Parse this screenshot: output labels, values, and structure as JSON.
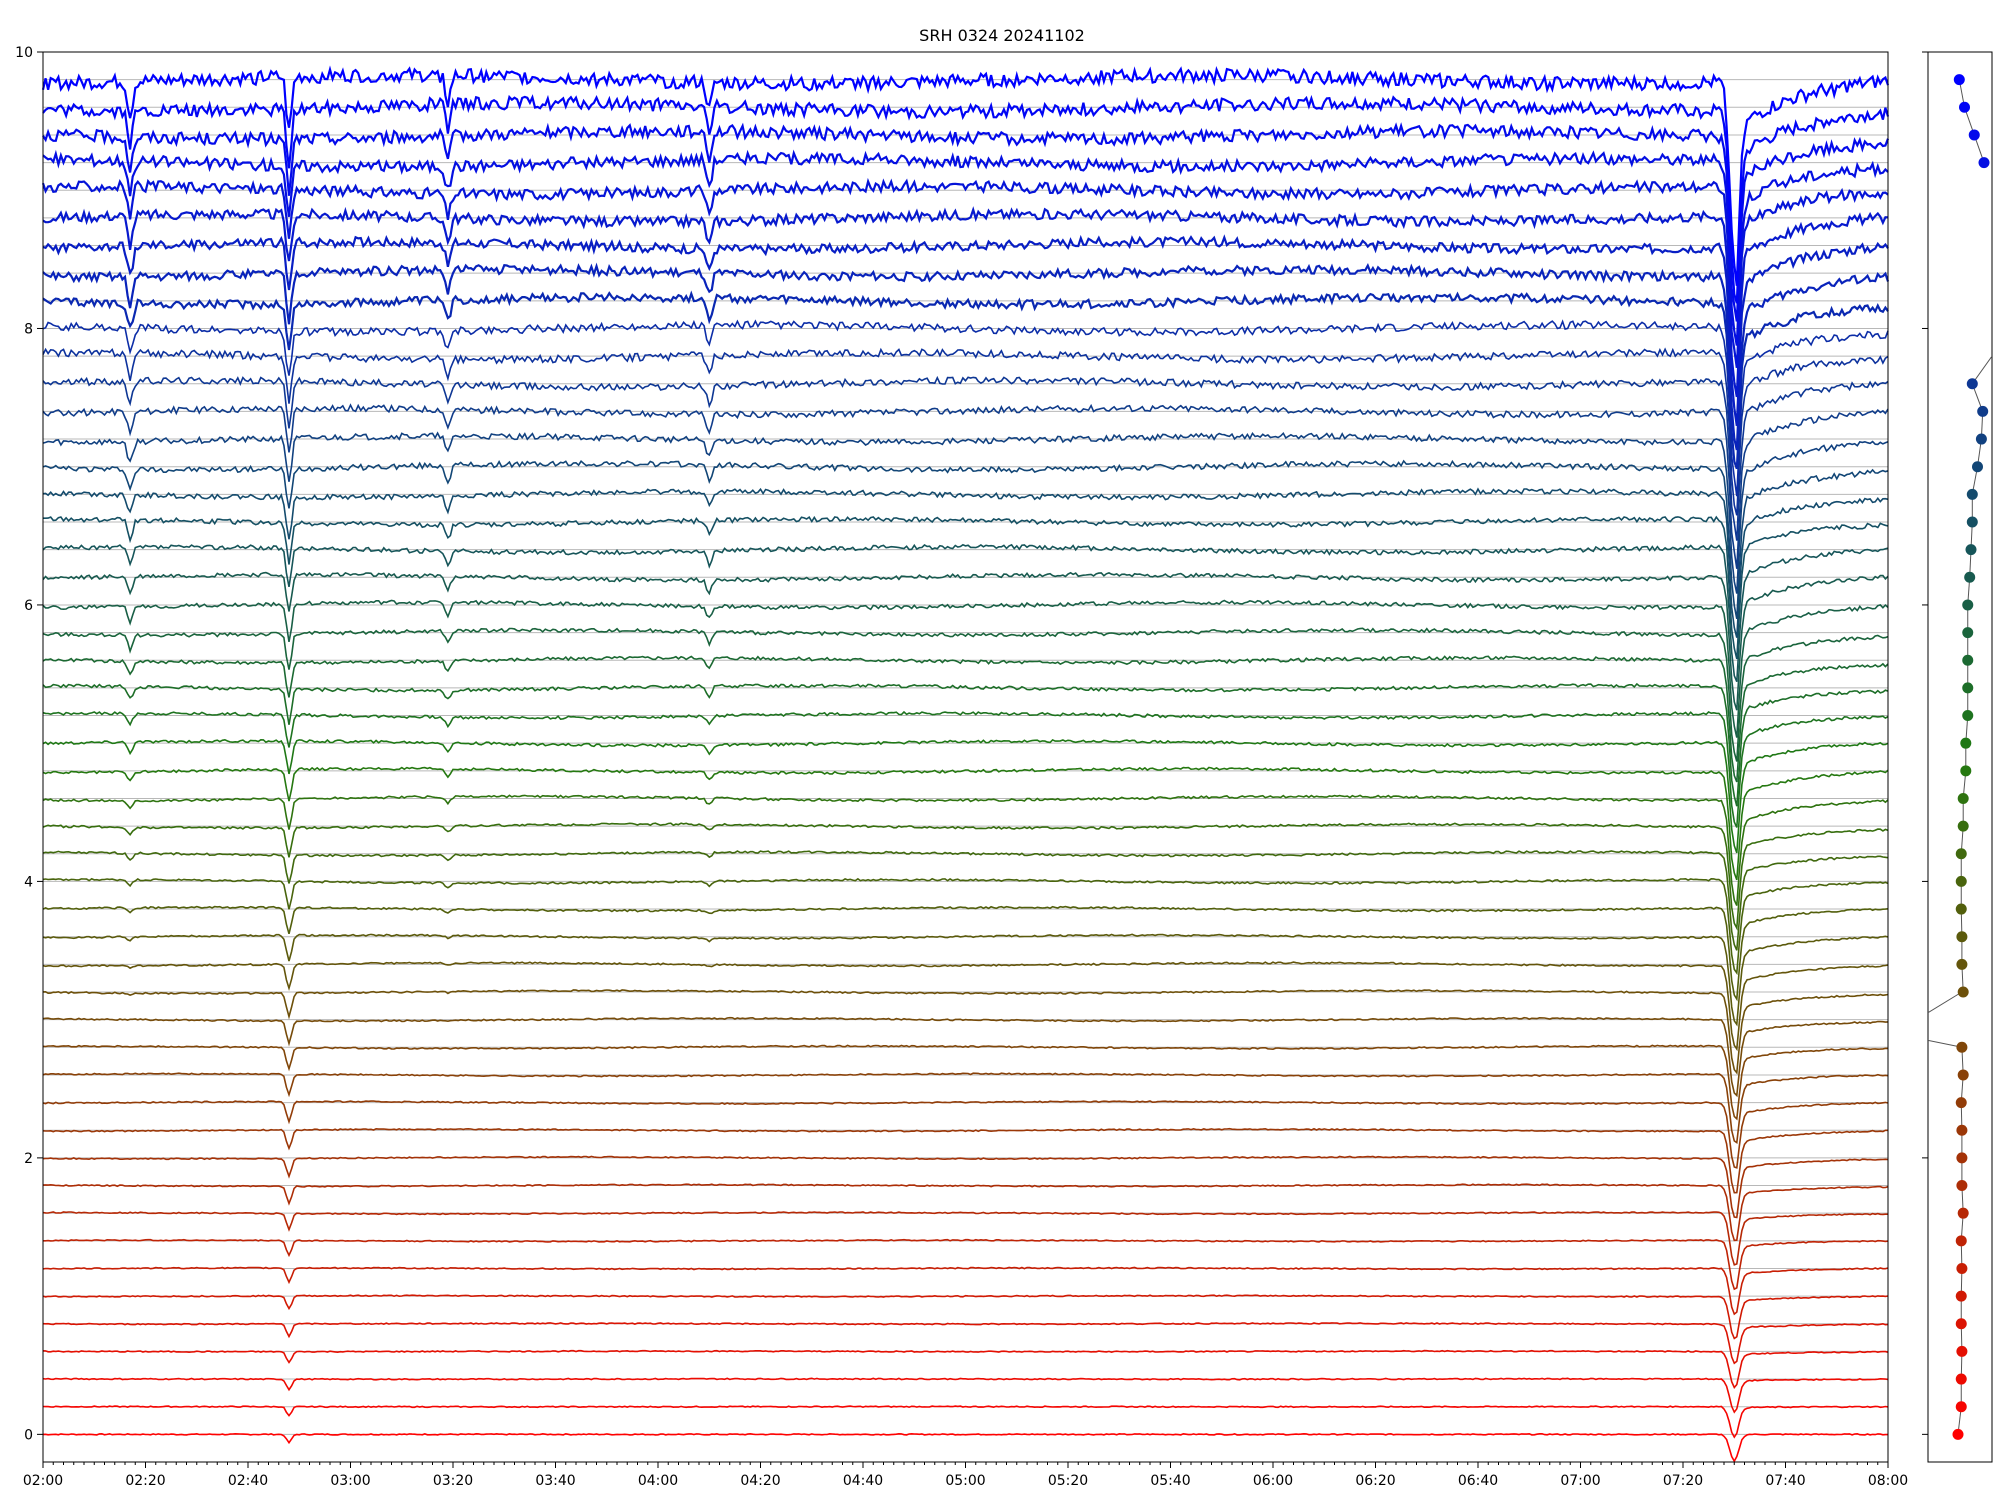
{
  "chart_data": [
    {
      "type": "line",
      "title": "SRH 0324 20241102",
      "xlabel": "",
      "ylabel": "",
      "x_range": [
        "02:00",
        "08:00"
      ],
      "ylim": [
        -0.2,
        10
      ],
      "x_ticks": [
        "02:00",
        "02:20",
        "02:40",
        "03:00",
        "03:20",
        "03:40",
        "04:00",
        "04:20",
        "04:40",
        "05:00",
        "05:20",
        "05:40",
        "06:00",
        "06:20",
        "06:40",
        "07:00",
        "07:20",
        "07:40",
        "08:00"
      ],
      "y_ticks": [
        "0",
        "2",
        "4",
        "6",
        "8",
        "10"
      ],
      "grid": "horizontal baseline per channel",
      "legend": "none",
      "num_series": 50,
      "channel_spacing": 0.2,
      "series_baselines": [
        0.0,
        0.2,
        0.4,
        0.6,
        0.8,
        1.0,
        1.2,
        1.4,
        1.6,
        1.8,
        2.0,
        2.2,
        2.4,
        2.6,
        2.8,
        3.0,
        3.2,
        3.4,
        3.6,
        3.8,
        4.0,
        4.2,
        4.4,
        4.6,
        4.8,
        5.0,
        5.2,
        5.4,
        5.6,
        5.8,
        6.0,
        6.2,
        6.4,
        6.6,
        6.8,
        7.0,
        7.2,
        7.4,
        7.6,
        7.8,
        8.0,
        8.2,
        8.4,
        8.6,
        8.8,
        9.0,
        9.2,
        9.4,
        9.6,
        9.8
      ],
      "color_bottom": "#ff0000",
      "color_middle": "#207a10",
      "color_top": "#0000ff",
      "events": [
        {
          "time": "02:17",
          "kind": "dip",
          "max_depth": 0.25,
          "channels": "upper"
        },
        {
          "time": "02:48",
          "kind": "dip",
          "max_depth": 0.4,
          "channels": "all"
        },
        {
          "time": "03:19",
          "kind": "dip",
          "max_depth": 0.2,
          "channels": "upper"
        },
        {
          "time": "04:10",
          "kind": "dip",
          "max_depth": 0.2,
          "channels": "upper"
        },
        {
          "time": "07:30",
          "kind": "dip",
          "max_depth": 1.3,
          "channels": "all"
        }
      ]
    },
    {
      "type": "scatter",
      "title": "",
      "xlabel": "",
      "ylabel": "",
      "ylim": [
        -0.2,
        10
      ],
      "x_ticks": [],
      "y_ticks": [],
      "points_y": [
        0.0,
        0.2,
        0.4,
        0.6,
        0.8,
        1.0,
        1.2,
        1.4,
        1.6,
        1.8,
        2.0,
        2.2,
        2.4,
        2.6,
        2.8,
        3.2,
        3.4,
        3.6,
        3.8,
        4.0,
        4.2,
        4.4,
        4.6,
        4.8,
        5.0,
        5.2,
        5.4,
        5.6,
        5.8,
        6.0,
        6.2,
        6.4,
        6.6,
        6.8,
        7.0,
        7.2,
        7.4,
        7.6,
        9.2,
        9.4,
        9.6,
        9.8
      ],
      "points_x": [
        0.0,
        0.05,
        0.05,
        0.06,
        0.05,
        0.05,
        0.06,
        0.05,
        0.08,
        0.06,
        0.06,
        0.06,
        0.05,
        0.08,
        0.06,
        0.08,
        0.06,
        0.06,
        0.05,
        0.05,
        0.05,
        0.08,
        0.08,
        0.12,
        0.12,
        0.15,
        0.15,
        0.15,
        0.15,
        0.15,
        0.18,
        0.2,
        0.22,
        0.22,
        0.3,
        0.36,
        0.38,
        0.22,
        0.4,
        0.25,
        0.1,
        0.02
      ]
    }
  ]
}
